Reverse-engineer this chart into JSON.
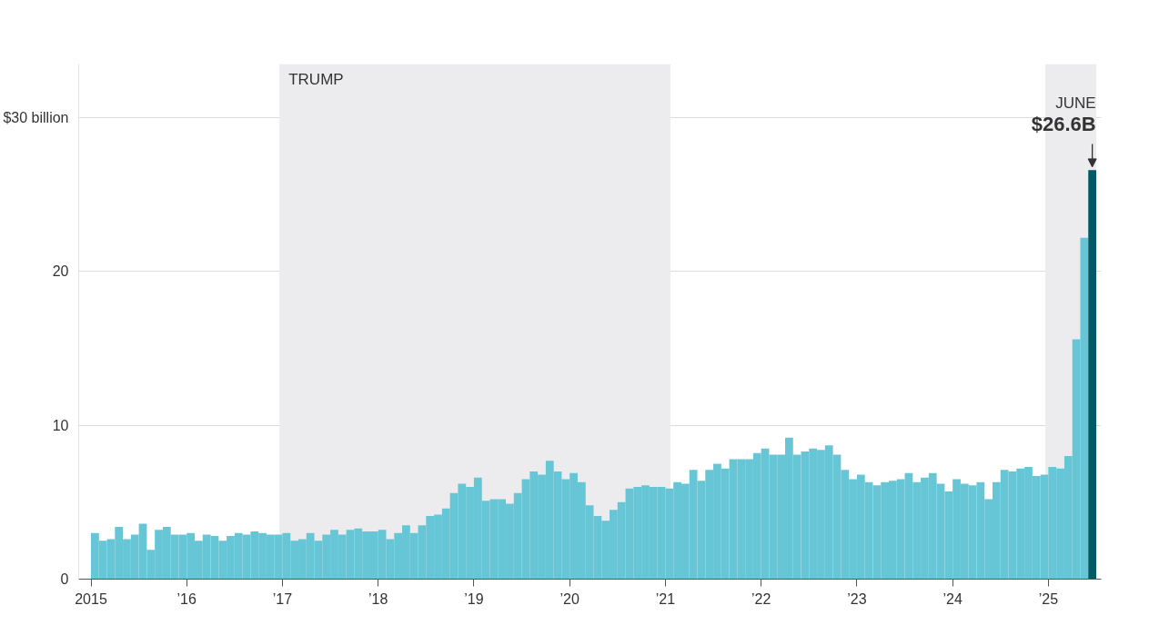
{
  "chart_data": {
    "type": "bar",
    "x": [
      "2015-01",
      "2015-02",
      "2015-03",
      "2015-04",
      "2015-05",
      "2015-06",
      "2015-07",
      "2015-08",
      "2015-09",
      "2015-10",
      "2015-11",
      "2015-12",
      "2016-01",
      "2016-02",
      "2016-03",
      "2016-04",
      "2016-05",
      "2016-06",
      "2016-07",
      "2016-08",
      "2016-09",
      "2016-10",
      "2016-11",
      "2016-12",
      "2017-01",
      "2017-02",
      "2017-03",
      "2017-04",
      "2017-05",
      "2017-06",
      "2017-07",
      "2017-08",
      "2017-09",
      "2017-10",
      "2017-11",
      "2017-12",
      "2018-01",
      "2018-02",
      "2018-03",
      "2018-04",
      "2018-05",
      "2018-06",
      "2018-07",
      "2018-08",
      "2018-09",
      "2018-10",
      "2018-11",
      "2018-12",
      "2019-01",
      "2019-02",
      "2019-03",
      "2019-04",
      "2019-05",
      "2019-06",
      "2019-07",
      "2019-08",
      "2019-09",
      "2019-10",
      "2019-11",
      "2019-12",
      "2020-01",
      "2020-02",
      "2020-03",
      "2020-04",
      "2020-05",
      "2020-06",
      "2020-07",
      "2020-08",
      "2020-09",
      "2020-10",
      "2020-11",
      "2020-12",
      "2021-01",
      "2021-02",
      "2021-03",
      "2021-04",
      "2021-05",
      "2021-06",
      "2021-07",
      "2021-08",
      "2021-09",
      "2021-10",
      "2021-11",
      "2021-12",
      "2022-01",
      "2022-02",
      "2022-03",
      "2022-04",
      "2022-05",
      "2022-06",
      "2022-07",
      "2022-08",
      "2022-09",
      "2022-10",
      "2022-11",
      "2022-12",
      "2023-01",
      "2023-02",
      "2023-03",
      "2023-04",
      "2023-05",
      "2023-06",
      "2023-07",
      "2023-08",
      "2023-09",
      "2023-10",
      "2023-11",
      "2023-12",
      "2024-01",
      "2024-02",
      "2024-03",
      "2024-04",
      "2024-05",
      "2024-06",
      "2024-07",
      "2024-08",
      "2024-09",
      "2024-10",
      "2024-11",
      "2024-12",
      "2025-01",
      "2025-02",
      "2025-03",
      "2025-04",
      "2025-05",
      "2025-06"
    ],
    "series": [
      {
        "color": "#66c6d6",
        "colors": [
          "#66c6d6",
          "#66c6d6",
          "#66c6d6",
          "#66c6d6",
          "#66c6d6",
          "#66c6d6",
          "#66c6d6",
          "#66c6d6",
          "#66c6d6",
          "#66c6d6",
          "#66c6d6",
          "#66c6d6",
          "#66c6d6",
          "#66c6d6",
          "#66c6d6",
          "#66c6d6",
          "#66c6d6",
          "#66c6d6",
          "#66c6d6",
          "#66c6d6",
          "#66c6d6",
          "#66c6d6",
          "#66c6d6",
          "#66c6d6",
          "#66c6d6",
          "#66c6d6",
          "#66c6d6",
          "#66c6d6",
          "#66c6d6",
          "#66c6d6",
          "#66c6d6",
          "#66c6d6",
          "#66c6d6",
          "#66c6d6",
          "#66c6d6",
          "#66c6d6",
          "#66c6d6",
          "#66c6d6",
          "#66c6d6",
          "#66c6d6",
          "#66c6d6",
          "#66c6d6",
          "#66c6d6",
          "#66c6d6",
          "#66c6d6",
          "#66c6d6",
          "#66c6d6",
          "#66c6d6",
          "#66c6d6",
          "#66c6d6",
          "#66c6d6",
          "#66c6d6",
          "#66c6d6",
          "#66c6d6",
          "#66c6d6",
          "#66c6d6",
          "#66c6d6",
          "#66c6d6",
          "#66c6d6",
          "#66c6d6",
          "#66c6d6",
          "#66c6d6",
          "#66c6d6",
          "#66c6d6",
          "#66c6d6",
          "#66c6d6",
          "#66c6d6",
          "#66c6d6",
          "#66c6d6",
          "#66c6d6",
          "#66c6d6",
          "#66c6d6",
          "#66c6d6",
          "#66c6d6",
          "#66c6d6",
          "#66c6d6",
          "#66c6d6",
          "#66c6d6",
          "#66c6d6",
          "#66c6d6",
          "#66c6d6",
          "#66c6d6",
          "#66c6d6",
          "#66c6d6",
          "#66c6d6",
          "#66c6d6",
          "#66c6d6",
          "#66c6d6",
          "#66c6d6",
          "#66c6d6",
          "#66c6d6",
          "#66c6d6",
          "#66c6d6",
          "#66c6d6",
          "#66c6d6",
          "#66c6d6",
          "#66c6d6",
          "#66c6d6",
          "#66c6d6",
          "#66c6d6",
          "#66c6d6",
          "#66c6d6",
          "#66c6d6",
          "#66c6d6",
          "#66c6d6",
          "#66c6d6",
          "#66c6d6",
          "#66c6d6",
          "#66c6d6",
          "#66c6d6",
          "#66c6d6",
          "#66c6d6",
          "#66c6d6",
          "#66c6d6",
          "#66c6d6",
          "#66c6d6",
          "#66c6d6",
          "#66c6d6",
          "#66c6d6",
          "#66c6d6",
          "#66c6d6",
          "#66c6d6",
          "#66c6d6",
          "#66c6d6",
          "#66c6d6",
          "#005a66"
        ],
        "values": [
          3.0,
          2.5,
          2.6,
          3.4,
          2.6,
          2.9,
          3.6,
          1.9,
          3.2,
          3.4,
          2.9,
          2.9,
          3.0,
          2.5,
          2.9,
          2.8,
          2.5,
          2.8,
          3.0,
          2.9,
          3.1,
          3.0,
          2.9,
          2.9,
          3.0,
          2.5,
          2.6,
          3.0,
          2.5,
          2.9,
          3.2,
          2.9,
          3.2,
          3.3,
          3.1,
          3.1,
          3.2,
          2.6,
          3.0,
          3.5,
          3.0,
          3.5,
          4.1,
          4.2,
          4.6,
          5.6,
          6.2,
          6.0,
          6.6,
          5.1,
          5.2,
          5.2,
          4.9,
          5.6,
          6.5,
          7.0,
          6.8,
          7.7,
          7.0,
          6.5,
          6.9,
          6.3,
          4.8,
          4.1,
          3.8,
          4.5,
          5.0,
          5.9,
          6.0,
          6.1,
          6.0,
          6.0,
          5.9,
          6.3,
          6.2,
          7.1,
          6.4,
          7.1,
          7.5,
          7.2,
          7.8,
          7.8,
          7.8,
          8.2,
          8.5,
          8.1,
          8.1,
          9.2,
          8.1,
          8.3,
          8.5,
          8.4,
          8.7,
          8.1,
          7.1,
          6.5,
          6.8,
          6.3,
          6.1,
          6.3,
          6.4,
          6.5,
          6.9,
          6.3,
          6.6,
          6.9,
          6.2,
          5.7,
          6.5,
          6.2,
          6.1,
          6.3,
          5.2,
          6.3,
          7.1,
          7.0,
          7.2,
          7.3,
          6.7,
          6.8,
          7.3,
          7.2,
          8.0,
          15.6,
          22.2,
          26.6
        ]
      }
    ],
    "xlim": [
      "2014-11-15",
      "2025-07-20"
    ],
    "xticks": [
      {
        "value": "2015",
        "label": "2015"
      },
      {
        "value": "2016",
        "label": "’16"
      },
      {
        "value": "2017",
        "label": "’17"
      },
      {
        "value": "2018",
        "label": "’18"
      },
      {
        "value": "2019",
        "label": "’19"
      },
      {
        "value": "2020",
        "label": "’20"
      },
      {
        "value": "2021",
        "label": "’21"
      },
      {
        "value": "2022",
        "label": "’22"
      },
      {
        "value": "2023",
        "label": "’23"
      },
      {
        "value": "2024",
        "label": "’24"
      },
      {
        "value": "2025",
        "label": "’25"
      }
    ],
    "ylim": [
      0,
      33.5
    ],
    "yticks": [
      0,
      10,
      20,
      {
        "value": 30,
        "label": "$30 billion"
      }
    ],
    "grid": "y",
    "bands": [
      {
        "axis": "x",
        "from": "2016-12-20",
        "to": "2021-01-20",
        "label": "TRUMP",
        "color": "#ececee"
      },
      {
        "axis": "x",
        "from": "2024-12-20",
        "to": "2025-07-01",
        "label": null,
        "color": "#ececee"
      }
    ],
    "annotations": [
      "JUNE",
      {
        "text": "$26.6B",
        "x": "2025-06",
        "y": 26.6
      }
    ]
  }
}
